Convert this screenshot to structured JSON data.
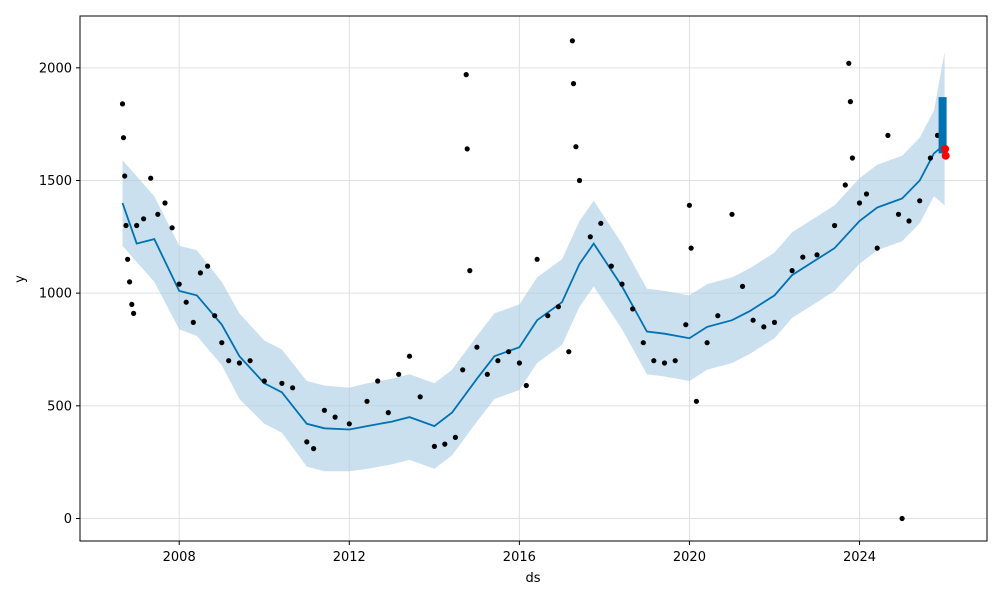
{
  "chart_data": {
    "type": "line",
    "title": "",
    "xlabel": "ds",
    "ylabel": "y",
    "x_range": [
      "2005-09-01",
      "2026-12-31"
    ],
    "ylim": [
      -100,
      2230
    ],
    "x_ticks": [
      "2008",
      "2012",
      "2016",
      "2020",
      "2024"
    ],
    "y_ticks": [
      "0",
      "500",
      "1000",
      "1500",
      "2000"
    ],
    "grid": true,
    "legend": "none",
    "colors": {
      "observed": "#000000",
      "forecast": "#0072B2",
      "uncertainty_band": "#a6cbe3",
      "highlight": "#ff0000"
    },
    "series": [
      {
        "kind": "forecast_line",
        "points": [
          [
            "2006-09-01",
            1400
          ],
          [
            "2007-01-01",
            1220
          ],
          [
            "2007-06-01",
            1240
          ],
          [
            "2008-01-01",
            1010
          ],
          [
            "2008-06-01",
            990
          ],
          [
            "2009-01-01",
            860
          ],
          [
            "2009-06-01",
            720
          ],
          [
            "2010-01-01",
            600
          ],
          [
            "2010-06-01",
            560
          ],
          [
            "2011-01-01",
            420
          ],
          [
            "2011-06-01",
            400
          ],
          [
            "2012-01-01",
            395
          ],
          [
            "2012-06-01",
            410
          ],
          [
            "2013-01-01",
            430
          ],
          [
            "2013-06-01",
            450
          ],
          [
            "2014-01-01",
            410
          ],
          [
            "2014-06-01",
            470
          ],
          [
            "2015-01-01",
            620
          ],
          [
            "2015-06-01",
            720
          ],
          [
            "2016-01-01",
            760
          ],
          [
            "2016-06-01",
            880
          ],
          [
            "2017-01-01",
            960
          ],
          [
            "2017-06-01",
            1130
          ],
          [
            "2017-10-01",
            1220
          ],
          [
            "2018-06-01",
            1030
          ],
          [
            "2019-01-01",
            830
          ],
          [
            "2019-06-01",
            820
          ],
          [
            "2020-01-01",
            800
          ],
          [
            "2020-06-01",
            850
          ],
          [
            "2021-01-01",
            880
          ],
          [
            "2021-06-01",
            920
          ],
          [
            "2022-01-01",
            990
          ],
          [
            "2022-06-01",
            1080
          ],
          [
            "2023-01-01",
            1150
          ],
          [
            "2023-06-01",
            1200
          ],
          [
            "2024-01-01",
            1320
          ],
          [
            "2024-06-01",
            1380
          ],
          [
            "2025-01-01",
            1420
          ],
          [
            "2025-06-01",
            1500
          ],
          [
            "2025-10-01",
            1620
          ],
          [
            "2026-01-01",
            1660
          ]
        ]
      },
      {
        "kind": "uncertainty_band",
        "points": [
          [
            "2006-09-01",
            1210,
            1590
          ],
          [
            "2007-06-01",
            1050,
            1430
          ],
          [
            "2008-01-01",
            840,
            1210
          ],
          [
            "2008-06-01",
            810,
            1190
          ],
          [
            "2009-01-01",
            680,
            1050
          ],
          [
            "2009-06-01",
            530,
            910
          ],
          [
            "2010-01-01",
            420,
            790
          ],
          [
            "2010-06-01",
            380,
            750
          ],
          [
            "2011-01-01",
            230,
            610
          ],
          [
            "2011-06-01",
            210,
            590
          ],
          [
            "2012-01-01",
            210,
            580
          ],
          [
            "2012-06-01",
            220,
            600
          ],
          [
            "2013-01-01",
            240,
            620
          ],
          [
            "2013-06-01",
            260,
            640
          ],
          [
            "2014-01-01",
            220,
            600
          ],
          [
            "2014-06-01",
            280,
            660
          ],
          [
            "2015-01-01",
            430,
            810
          ],
          [
            "2015-06-01",
            530,
            910
          ],
          [
            "2016-01-01",
            570,
            950
          ],
          [
            "2016-06-01",
            690,
            1070
          ],
          [
            "2017-01-01",
            770,
            1150
          ],
          [
            "2017-06-01",
            940,
            1320
          ],
          [
            "2017-10-01",
            1030,
            1410
          ],
          [
            "2018-06-01",
            840,
            1220
          ],
          [
            "2019-01-01",
            640,
            1020
          ],
          [
            "2019-06-01",
            630,
            1010
          ],
          [
            "2020-01-01",
            610,
            990
          ],
          [
            "2020-06-01",
            660,
            1040
          ],
          [
            "2021-01-01",
            690,
            1070
          ],
          [
            "2021-06-01",
            730,
            1110
          ],
          [
            "2022-01-01",
            800,
            1180
          ],
          [
            "2022-06-01",
            890,
            1270
          ],
          [
            "2023-01-01",
            960,
            1340
          ],
          [
            "2023-06-01",
            1010,
            1390
          ],
          [
            "2024-01-01",
            1130,
            1510
          ],
          [
            "2024-06-01",
            1190,
            1570
          ],
          [
            "2025-01-01",
            1230,
            1610
          ],
          [
            "2025-06-01",
            1310,
            1690
          ],
          [
            "2025-10-01",
            1430,
            1810
          ],
          [
            "2026-01-01",
            1390,
            2070
          ]
        ]
      },
      {
        "kind": "observed",
        "points": [
          [
            "2006-09-01",
            1840
          ],
          [
            "2006-09-10",
            1690
          ],
          [
            "2006-09-20",
            1520
          ],
          [
            "2006-10-01",
            1300
          ],
          [
            "2006-10-15",
            1150
          ],
          [
            "2006-11-01",
            1050
          ],
          [
            "2006-11-20",
            950
          ],
          [
            "2006-12-05",
            910
          ],
          [
            "2007-01-01",
            1300
          ],
          [
            "2007-03-01",
            1330
          ],
          [
            "2007-05-01",
            1510
          ],
          [
            "2007-07-01",
            1350
          ],
          [
            "2007-09-01",
            1400
          ],
          [
            "2007-11-01",
            1290
          ],
          [
            "2008-01-01",
            1040
          ],
          [
            "2008-03-01",
            960
          ],
          [
            "2008-05-01",
            870
          ],
          [
            "2008-07-01",
            1090
          ],
          [
            "2008-09-01",
            1120
          ],
          [
            "2008-11-01",
            900
          ],
          [
            "2009-01-01",
            780
          ],
          [
            "2009-03-01",
            700
          ],
          [
            "2009-06-01",
            690
          ],
          [
            "2009-09-01",
            700
          ],
          [
            "2010-01-01",
            610
          ],
          [
            "2010-06-01",
            600
          ],
          [
            "2010-09-01",
            580
          ],
          [
            "2011-01-01",
            340
          ],
          [
            "2011-03-01",
            310
          ],
          [
            "2011-06-01",
            480
          ],
          [
            "2011-09-01",
            450
          ],
          [
            "2012-01-01",
            420
          ],
          [
            "2012-06-01",
            520
          ],
          [
            "2012-09-01",
            610
          ],
          [
            "2012-12-01",
            470
          ],
          [
            "2013-03-01",
            640
          ],
          [
            "2013-06-01",
            720
          ],
          [
            "2013-09-01",
            540
          ],
          [
            "2014-01-01",
            320
          ],
          [
            "2014-04-01",
            330
          ],
          [
            "2014-07-01",
            360
          ],
          [
            "2014-09-01",
            660
          ],
          [
            "2014-10-01",
            1970
          ],
          [
            "2014-10-10",
            1640
          ],
          [
            "2014-11-01",
            1100
          ],
          [
            "2015-01-01",
            760
          ],
          [
            "2015-04-01",
            640
          ],
          [
            "2015-07-01",
            700
          ],
          [
            "2015-10-01",
            740
          ],
          [
            "2016-01-01",
            690
          ],
          [
            "2016-03-01",
            590
          ],
          [
            "2016-06-01",
            1150
          ],
          [
            "2016-09-01",
            900
          ],
          [
            "2016-12-01",
            940
          ],
          [
            "2017-03-01",
            740
          ],
          [
            "2017-04-01",
            2120
          ],
          [
            "2017-04-10",
            1930
          ],
          [
            "2017-05-01",
            1650
          ],
          [
            "2017-06-01",
            1500
          ],
          [
            "2017-09-01",
            1250
          ],
          [
            "2017-12-01",
            1310
          ],
          [
            "2018-03-01",
            1120
          ],
          [
            "2018-06-01",
            1040
          ],
          [
            "2018-09-01",
            930
          ],
          [
            "2018-12-01",
            780
          ],
          [
            "2019-03-01",
            700
          ],
          [
            "2019-06-01",
            690
          ],
          [
            "2019-09-01",
            700
          ],
          [
            "2019-12-01",
            860
          ],
          [
            "2020-01-01",
            1390
          ],
          [
            "2020-01-15",
            1200
          ],
          [
            "2020-03-01",
            520
          ],
          [
            "2020-06-01",
            780
          ],
          [
            "2020-09-01",
            900
          ],
          [
            "2021-01-01",
            1350
          ],
          [
            "2021-04-01",
            1030
          ],
          [
            "2021-07-01",
            880
          ],
          [
            "2021-10-01",
            850
          ],
          [
            "2022-01-01",
            870
          ],
          [
            "2022-06-01",
            1100
          ],
          [
            "2022-09-01",
            1160
          ],
          [
            "2023-01-01",
            1170
          ],
          [
            "2023-06-01",
            1300
          ],
          [
            "2023-09-01",
            1480
          ],
          [
            "2023-10-01",
            2020
          ],
          [
            "2023-10-15",
            1850
          ],
          [
            "2023-11-01",
            1600
          ],
          [
            "2024-01-01",
            1400
          ],
          [
            "2024-03-01",
            1440
          ],
          [
            "2024-06-01",
            1200
          ],
          [
            "2024-09-01",
            1700
          ],
          [
            "2024-12-01",
            1350
          ],
          [
            "2025-01-01",
            0
          ],
          [
            "2025-03-01",
            1320
          ],
          [
            "2025-06-01",
            1410
          ],
          [
            "2025-09-01",
            1600
          ],
          [
            "2025-11-01",
            1700
          ]
        ]
      },
      {
        "kind": "forecast_bars",
        "points": [
          [
            "2025-12-15",
            1620,
            1870
          ]
        ]
      },
      {
        "kind": "highlight_points",
        "points": [
          [
            "2026-01-05",
            1640
          ],
          [
            "2026-01-10",
            1610
          ]
        ]
      }
    ]
  }
}
